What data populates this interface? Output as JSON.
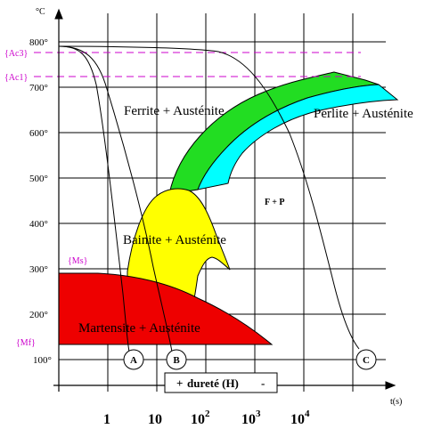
{
  "diagram": {
    "y_unit": "°C",
    "x_unit": "t(s)",
    "y_ticks": [
      "800°",
      "700°",
      "600°",
      "500°",
      "400°",
      "300°",
      "200°",
      "100°"
    ],
    "x_ticks": {
      "t1": {
        "base": "1",
        "exp": ""
      },
      "t2": {
        "base": "10",
        "exp": ""
      },
      "t3": {
        "base": "10",
        "exp": "2"
      },
      "t4": {
        "base": "10",
        "exp": "3"
      },
      "t5": {
        "base": "10",
        "exp": "4"
      }
    },
    "temperature_markers": {
      "ac3": "{Ac3}",
      "ac1": "{Ac1}",
      "ms": "{Ms}",
      "mf": "{Mf}"
    },
    "regions": {
      "ferrite": "Ferrite + Austénite",
      "perlite": "Perlite + Austénite",
      "bainite": "Bainite + Austénite",
      "martensite": "Martensite + Austénite",
      "fp": "F + P"
    },
    "curves": {
      "a": "A",
      "b": "B",
      "c": "C"
    },
    "legend": {
      "plus": "+",
      "text": "dureté (H)",
      "minus": "-"
    },
    "colors": {
      "ferrite": "#22dd22",
      "perlite": "#00ffff",
      "bainite": "#ffff00",
      "martensite": "#ee0000",
      "markers": "#cc00cc"
    }
  }
}
